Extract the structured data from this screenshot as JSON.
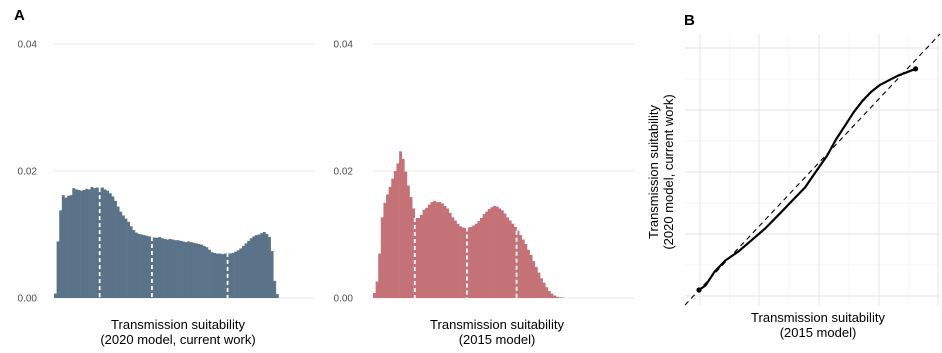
{
  "panel_a_tag": "A",
  "panel_b_tag": "B",
  "chart_data": [
    {
      "type": "bar",
      "panel": "A-left",
      "title": "",
      "xlabel": [
        "Transmission suitability",
        "(2020 model, current work)"
      ],
      "ylabel": "",
      "ylim": [
        0,
        0.04
      ],
      "yticks": [
        "0.00",
        "0.02",
        "0.04"
      ],
      "grid": true,
      "color": "#5b7389",
      "bins": 100,
      "values": [
        0.0007,
        0.0089,
        0.0138,
        0.0162,
        0.0158,
        0.0161,
        0.0162,
        0.0173,
        0.0171,
        0.017,
        0.0169,
        0.017,
        0.0172,
        0.0171,
        0.0175,
        0.0173,
        0.0174,
        0.0173,
        0.0174,
        0.0171,
        0.0169,
        0.0165,
        0.016,
        0.0153,
        0.0144,
        0.0136,
        0.013,
        0.0125,
        0.012,
        0.0113,
        0.0107,
        0.0103,
        0.0101,
        0.01,
        0.0099,
        0.0098,
        0.0097,
        0.0096,
        0.0095,
        0.0095,
        0.0096,
        0.0094,
        0.0093,
        0.0092,
        0.0093,
        0.0092,
        0.0091,
        0.0091,
        0.009,
        0.0089,
        0.0088,
        0.0089,
        0.0088,
        0.0087,
        0.0086,
        0.0085,
        0.0084,
        0.0082,
        0.008,
        0.0076,
        0.0072,
        0.0071,
        0.007,
        0.007,
        0.0069,
        0.007,
        0.0071,
        0.007,
        0.0071,
        0.0073,
        0.0075,
        0.0078,
        0.0082,
        0.0086,
        0.009,
        0.0094,
        0.0097,
        0.0099,
        0.01,
        0.0102,
        0.0104,
        0.0101,
        0.0096,
        0.0074,
        0.0027,
        0.0006
      ],
      "quartile_markers": [
        0.175,
        0.375,
        0.665
      ]
    },
    {
      "type": "bar",
      "panel": "A-right",
      "title": "",
      "xlabel": [
        "Transmission suitability",
        "(2015 model)"
      ],
      "ylabel": "",
      "ylim": [
        0,
        0.04
      ],
      "yticks": [
        "0.00",
        "0.02",
        "0.04"
      ],
      "grid": true,
      "color": "#c47277",
      "bins": 100,
      "values": [
        0.0008,
        0.0026,
        0.007,
        0.0127,
        0.015,
        0.0163,
        0.0175,
        0.0188,
        0.02,
        0.0212,
        0.0231,
        0.0219,
        0.0199,
        0.0177,
        0.0159,
        0.0141,
        0.0126,
        0.0126,
        0.0131,
        0.0139,
        0.0142,
        0.0147,
        0.0151,
        0.0153,
        0.0151,
        0.0151,
        0.0149,
        0.0145,
        0.0141,
        0.0134,
        0.0127,
        0.0122,
        0.0117,
        0.0113,
        0.0111,
        0.011,
        0.0111,
        0.0112,
        0.0114,
        0.0117,
        0.0121,
        0.0126,
        0.0132,
        0.0136,
        0.014,
        0.0143,
        0.0145,
        0.0144,
        0.0141,
        0.0138,
        0.0133,
        0.0127,
        0.0122,
        0.0117,
        0.0112,
        0.0106,
        0.0099,
        0.0092,
        0.0085,
        0.0076,
        0.0068,
        0.0058,
        0.0049,
        0.004,
        0.0031,
        0.0024,
        0.0017,
        0.0011,
        0.0007,
        0.0004,
        0.0002,
        0.0001,
        0.0001
      ],
      "quartile_markers": [
        0.16,
        0.36,
        0.55
      ]
    },
    {
      "type": "line",
      "panel": "B",
      "title": "",
      "xlabel": [
        "Transmission suitability",
        "(2015 model)"
      ],
      "ylabel": [
        "Transmission suitability",
        "(2020 model, current work)"
      ],
      "xlim": [
        0,
        1
      ],
      "ylim": [
        0,
        1
      ],
      "grid": true,
      "reference_line": "y = x (dashed)",
      "series": [
        {
          "x": [
            0.0,
            0.03,
            0.07,
            0.12,
            0.18,
            0.24,
            0.3,
            0.36,
            0.42,
            0.48,
            0.53,
            0.58,
            0.62,
            0.66,
            0.7,
            0.74,
            0.78,
            0.82,
            0.86,
            0.9,
            0.94,
            0.98
          ],
          "y": [
            0.0,
            0.02,
            0.08,
            0.13,
            0.17,
            0.22,
            0.27,
            0.33,
            0.39,
            0.45,
            0.52,
            0.59,
            0.66,
            0.72,
            0.78,
            0.83,
            0.87,
            0.9,
            0.92,
            0.94,
            0.955,
            0.97
          ]
        }
      ]
    }
  ]
}
